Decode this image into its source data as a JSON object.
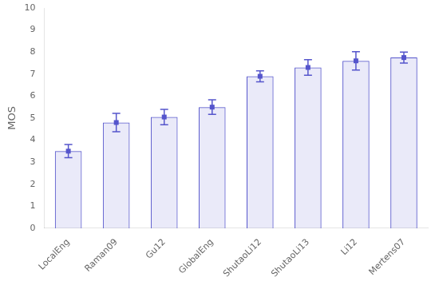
{
  "chart_data": {
    "type": "bar",
    "categories": [
      "LocalEng",
      "Raman09",
      "Gu12",
      "GlobalEng",
      "ShutaoLi12",
      "ShutaoLi13",
      "Li12",
      "Mertens07"
    ],
    "values": [
      3.5,
      4.8,
      5.05,
      5.5,
      6.9,
      7.3,
      7.6,
      7.75
    ],
    "errors": [
      0.3,
      0.42,
      0.35,
      0.33,
      0.25,
      0.35,
      0.42,
      0.25
    ],
    "color": "#5555cc",
    "marker": "square",
    "ylabel": "MOS",
    "ylim": [
      0,
      10
    ],
    "yticks": [
      0,
      1,
      2,
      3,
      4,
      5,
      6,
      7,
      8,
      9,
      10
    ],
    "grid": false
  }
}
